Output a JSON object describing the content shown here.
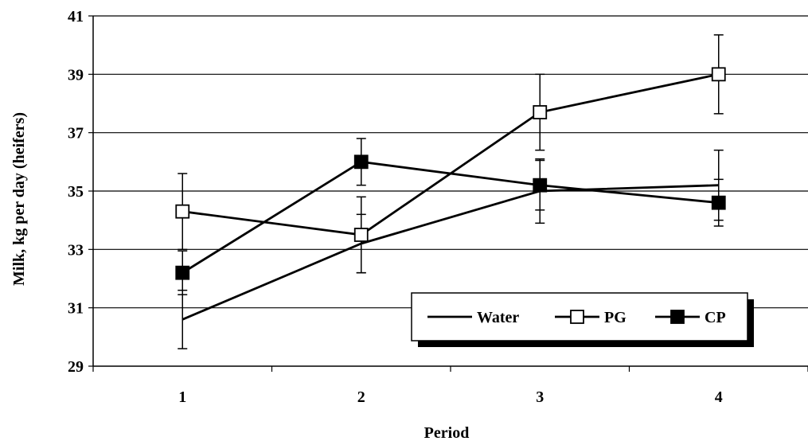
{
  "chart_data": {
    "type": "line",
    "xlabel": "Period",
    "ylabel": "Milk, kg per day (heifers)",
    "categories": [
      "1",
      "2",
      "3",
      "4"
    ],
    "ylim": [
      29,
      41
    ],
    "yticks": [
      "29",
      "31",
      "33",
      "35",
      "37",
      "39",
      "41"
    ],
    "grid": "horizontal",
    "legend_position": "bottom-right",
    "series": [
      {
        "name": "Water",
        "marker": "none",
        "values": [
          30.6,
          33.2,
          35.0,
          35.2
        ],
        "error": [
          1.0,
          1.0,
          1.1,
          1.2
        ]
      },
      {
        "name": "PG",
        "marker": "open-square",
        "values": [
          34.3,
          33.5,
          37.7,
          39.0
        ],
        "error": [
          1.3,
          1.3,
          1.3,
          1.35
        ]
      },
      {
        "name": "CP",
        "marker": "filled-square",
        "values": [
          32.2,
          36.0,
          35.2,
          34.6
        ],
        "error": [
          0.75,
          0.8,
          0.85,
          0.8
        ]
      }
    ]
  }
}
